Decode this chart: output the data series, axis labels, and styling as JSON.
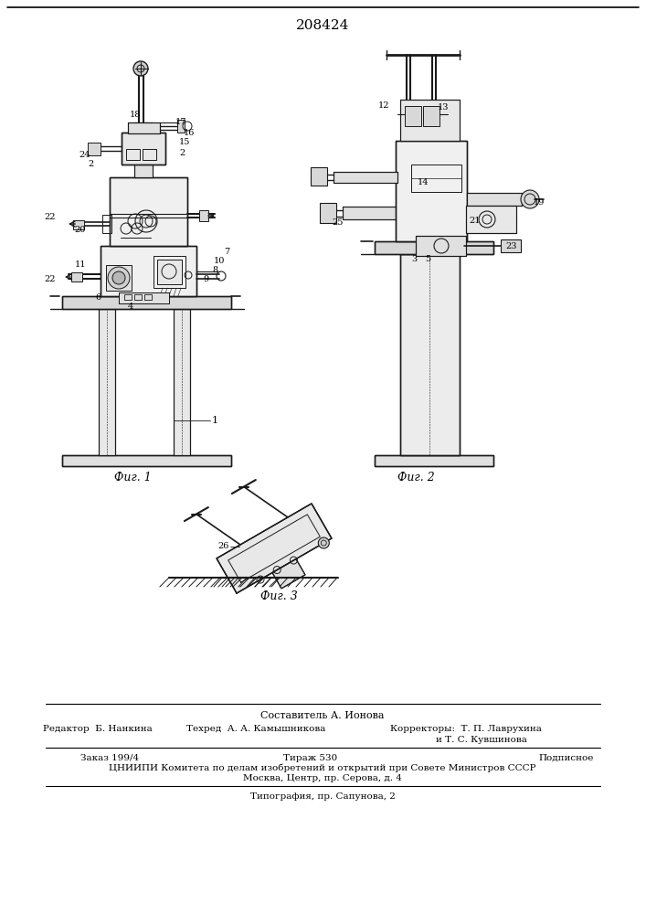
{
  "title": "208424",
  "bg_color": "#ffffff",
  "fig1_caption": "Фиг. 1",
  "fig2_caption": "Фиг. 2",
  "fig3_caption": "Фиг. 3",
  "footer_line1": "Составитель А. Ионова",
  "footer_col1_r1": "Редактор  Б. Нанкина",
  "footer_col2_r1": "Техред  А. А. Камышникова",
  "footer_col3_r1": "Корректоры:  Т. П. Лаврухина",
  "footer_col3_r2": "и Т. С. Кувшинова",
  "footer_r3_c1": "Заказ 199/4",
  "footer_r3_c2": "Тираж 530",
  "footer_r3_c3": "Подписное",
  "footer_r4": "ЦНИИПИ Комитета по делам изобретений и открытий при Совете Министров СССР",
  "footer_r5": "Москва, Центр, пр. Серова, д. 4",
  "footer_r6": "Типография, пр. Сапунова, 2",
  "dc": "#1a1a1a"
}
